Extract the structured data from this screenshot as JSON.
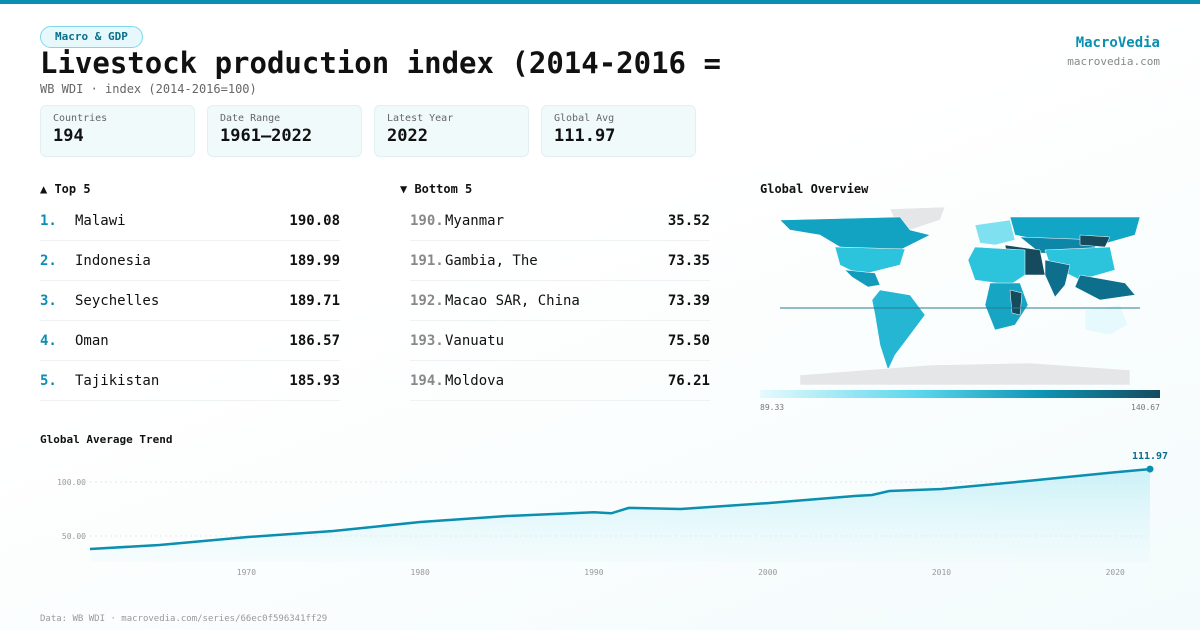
{
  "header": {
    "tag": "Macro & GDP",
    "title": "Livestock production index (2014-2016 =",
    "subtitle": "WB WDI · index (2014-2016=100)",
    "brand": "MacroVedia",
    "brand_url": "macrovedia.com"
  },
  "stats": [
    {
      "label": "Countries",
      "value": "194"
    },
    {
      "label": "Date Range",
      "value": "1961–2022"
    },
    {
      "label": "Latest Year",
      "value": "2022"
    },
    {
      "label": "Global Avg",
      "value": "111.97"
    }
  ],
  "top5": {
    "title": "▲ Top 5",
    "items": [
      {
        "rank": "1.",
        "name": "Malawi",
        "value": "190.08"
      },
      {
        "rank": "2.",
        "name": "Indonesia",
        "value": "189.99"
      },
      {
        "rank": "3.",
        "name": "Seychelles",
        "value": "189.71"
      },
      {
        "rank": "4.",
        "name": "Oman",
        "value": "186.57"
      },
      {
        "rank": "5.",
        "name": "Tajikistan",
        "value": "185.93"
      }
    ]
  },
  "bottom5": {
    "title": "▼ Bottom 5",
    "items": [
      {
        "rank": "190.",
        "name": "Myanmar",
        "value": "35.52"
      },
      {
        "rank": "191.",
        "name": "Gambia, The",
        "value": "73.35"
      },
      {
        "rank": "192.",
        "name": "Macao SAR, China",
        "value": "73.39"
      },
      {
        "rank": "193.",
        "name": "Vanuatu",
        "value": "75.50"
      },
      {
        "rank": "194.",
        "name": "Moldova",
        "value": "76.21"
      }
    ]
  },
  "map": {
    "title": "Global Overview",
    "legend_min": "89.33",
    "legend_max": "140.67",
    "colors": {
      "low": "#e6fafd",
      "mid": "#0e95b5",
      "high": "#164b5e"
    }
  },
  "chart_data": {
    "type": "area",
    "title": "Global Average Trend",
    "xlabel": "",
    "ylabel": "",
    "ylim": [
      25,
      120
    ],
    "xlim": [
      1961,
      2022
    ],
    "yticks": [
      "50.00",
      "100.00"
    ],
    "xticks": [
      "1970",
      "1980",
      "1990",
      "2000",
      "2010",
      "2020"
    ],
    "x": [
      1961,
      1965,
      1970,
      1975,
      1980,
      1985,
      1990,
      1991,
      1992,
      1995,
      2000,
      2005,
      2006,
      2007,
      2010,
      2015,
      2020,
      2022
    ],
    "values": [
      38,
      41.7,
      49,
      54.6,
      63,
      68.5,
      72,
      71,
      76,
      75,
      80.5,
      87,
      88,
      91.7,
      93.5,
      101,
      109,
      111.97
    ],
    "last_label": "111.97",
    "color": "#0a8fb0"
  },
  "footer": "Data: WB WDI · macrovedia.com/series/66ec0f596341ff29"
}
